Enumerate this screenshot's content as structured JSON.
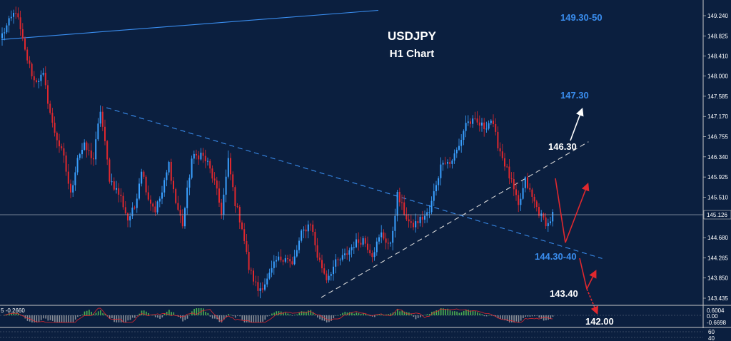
{
  "colors": {
    "background": "#0b1f3f",
    "bull": "#3aa0ff",
    "bear": "#e0282e",
    "blue_label": "#3a8ef0",
    "white_label": "#ffffff",
    "trendline_blue": "#3a8ef0",
    "trendline_white": "#d8d8d8",
    "arrow_red": "#e0282e"
  },
  "chart_data": {
    "type": "candlestick",
    "title": "USDJPY",
    "subtitle": "H1 Chart",
    "current_price": "145.126",
    "y_ticks": [
      "149.240",
      "148.825",
      "148.410",
      "148.000",
      "147.585",
      "147.170",
      "146.755",
      "146.340",
      "145.925",
      "145.510",
      "145.126",
      "144.680",
      "144.265",
      "143.850",
      "143.435"
    ],
    "ylim": [
      143.25,
      149.45
    ],
    "close_path": [
      [
        0,
        148.85
      ],
      [
        6,
        149.35
      ],
      [
        10,
        148.5
      ],
      [
        14,
        147.9
      ],
      [
        18,
        148.0
      ],
      [
        22,
        147.0
      ],
      [
        27,
        146.3
      ],
      [
        30,
        145.55
      ],
      [
        33,
        146.35
      ],
      [
        36,
        146.55
      ],
      [
        40,
        146.3
      ],
      [
        43,
        147.3
      ],
      [
        47,
        145.9
      ],
      [
        52,
        145.5
      ],
      [
        55,
        145.05
      ],
      [
        58,
        145.3
      ],
      [
        61,
        146.1
      ],
      [
        64,
        145.5
      ],
      [
        67,
        145.25
      ],
      [
        70,
        145.6
      ],
      [
        73,
        146.2
      ],
      [
        76,
        145.4
      ],
      [
        79,
        144.95
      ],
      [
        83,
        146.3
      ],
      [
        87,
        146.4
      ],
      [
        90,
        146.2
      ],
      [
        93,
        145.8
      ],
      [
        96,
        145.2
      ],
      [
        99,
        146.25
      ],
      [
        102,
        145.4
      ],
      [
        105,
        144.9
      ],
      [
        108,
        144.05
      ],
      [
        112,
        143.6
      ],
      [
        116,
        143.8
      ],
      [
        120,
        144.2
      ],
      [
        124,
        144.3
      ],
      [
        127,
        144.1
      ],
      [
        131,
        144.75
      ],
      [
        135,
        145.0
      ],
      [
        138,
        144.3
      ],
      [
        142,
        143.85
      ],
      [
        146,
        144.15
      ],
      [
        150,
        144.3
      ],
      [
        154,
        144.55
      ],
      [
        158,
        144.65
      ],
      [
        162,
        144.35
      ],
      [
        166,
        144.75
      ],
      [
        170,
        144.5
      ],
      [
        173,
        145.55
      ],
      [
        176,
        145.2
      ],
      [
        179,
        144.9
      ],
      [
        183,
        145.05
      ],
      [
        187,
        145.2
      ],
      [
        190,
        145.8
      ],
      [
        193,
        146.3
      ],
      [
        196,
        146.2
      ],
      [
        200,
        146.55
      ],
      [
        203,
        147.05
      ],
      [
        207,
        147.05
      ],
      [
        211,
        146.95
      ],
      [
        214,
        147.1
      ],
      [
        217,
        146.6
      ],
      [
        220,
        146.2
      ],
      [
        223,
        145.8
      ],
      [
        226,
        145.3
      ],
      [
        229,
        145.85
      ],
      [
        232,
        145.5
      ],
      [
        236,
        145.1
      ],
      [
        239,
        144.95
      ],
      [
        241,
        145.15
      ]
    ],
    "trendlines": [
      {
        "name": "upper-resistance",
        "style": "solid",
        "color": "blue",
        "from": [
          0,
          148.75
        ],
        "to": [
          165,
          149.35
        ]
      },
      {
        "name": "descending",
        "style": "dashed",
        "color": "blue",
        "from": [
          46,
          147.35
        ],
        "to": [
          263,
          144.25
        ]
      },
      {
        "name": "ascending",
        "style": "dashed",
        "color": "white",
        "from": [
          140,
          143.45
        ],
        "to": [
          257,
          146.65
        ]
      }
    ],
    "annotations": [
      {
        "text": "149.30-50",
        "color": "blue"
      },
      {
        "text": "147.30",
        "color": "blue"
      },
      {
        "text": "146.30",
        "color": "white"
      },
      {
        "text": "144.30-40",
        "color": "blue"
      },
      {
        "text": "143.40",
        "color": "white"
      },
      {
        "text": "142.00",
        "color": "white"
      }
    ],
    "indicator": {
      "left_label": "5 -0.2660",
      "ticks": [
        "0.6004",
        "0.00",
        "-0.6698"
      ]
    },
    "indicator2": {
      "ticks": [
        "60",
        "40"
      ]
    }
  }
}
